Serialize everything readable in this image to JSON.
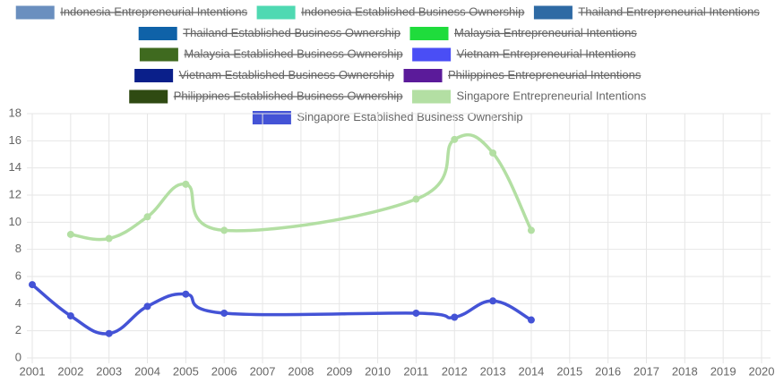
{
  "chart_data": {
    "type": "line",
    "x": [
      2001,
      2002,
      2003,
      2004,
      2005,
      2006,
      2007,
      2008,
      2009,
      2010,
      2011,
      2012,
      2013,
      2014,
      2015,
      2016,
      2017,
      2018,
      2019,
      2020
    ],
    "xlim": [
      2001,
      2020
    ],
    "xticks": [
      2001,
      2002,
      2003,
      2004,
      2005,
      2006,
      2007,
      2008,
      2009,
      2010,
      2011,
      2012,
      2013,
      2014,
      2015,
      2016,
      2017,
      2018,
      2019,
      2020
    ],
    "ylim": [
      0,
      18
    ],
    "yticks": [
      0,
      2,
      4,
      6,
      8,
      10,
      12,
      14,
      16,
      18
    ],
    "grid": true,
    "smooth": true,
    "span_gaps": true,
    "legend": "top",
    "series": [
      {
        "name": "Indonesia Entrepreneurial Intentions",
        "color": "#6a8fbf",
        "hidden": true
      },
      {
        "name": "Indonesia Established Business Ownership",
        "color": "#4fd9b2",
        "hidden": true
      },
      {
        "name": "Thailand Entrepreneurial Intentions",
        "color": "#2e6aa4",
        "hidden": true
      },
      {
        "name": "Thailand Established Business Ownership",
        "color": "#0f62a8",
        "hidden": true
      },
      {
        "name": "Malaysia Entrepreneurial Intentions",
        "color": "#1fdc3c",
        "hidden": true
      },
      {
        "name": "Malaysia Established Business Ownership",
        "color": "#3f6a1f",
        "hidden": true
      },
      {
        "name": "Vietnam Entrepreneurial Intentions",
        "color": "#4a4ef5",
        "hidden": true
      },
      {
        "name": "Vietnam Established Business Ownership",
        "color": "#0a1f8a",
        "hidden": true
      },
      {
        "name": "Philippines Entrepreneurial Intentions",
        "color": "#5b1b9a",
        "hidden": true
      },
      {
        "name": "Philippines Established Business Ownership",
        "color": "#2f4a12",
        "hidden": true
      },
      {
        "name": "Singapore Entrepreneurial Intentions",
        "color": "#b3dfa3",
        "values": [
          null,
          9.1,
          8.8,
          10.4,
          12.8,
          9.4,
          null,
          null,
          null,
          null,
          11.7,
          16.1,
          15.1,
          9.4,
          null,
          null,
          null,
          null,
          null,
          null
        ]
      },
      {
        "name": "Singapore Established Business Ownership",
        "color": "#4453d6",
        "values": [
          5.4,
          3.1,
          1.8,
          3.8,
          4.7,
          3.3,
          null,
          null,
          null,
          null,
          3.3,
          3.0,
          4.2,
          2.8,
          null,
          null,
          null,
          null,
          null,
          null
        ]
      }
    ]
  }
}
